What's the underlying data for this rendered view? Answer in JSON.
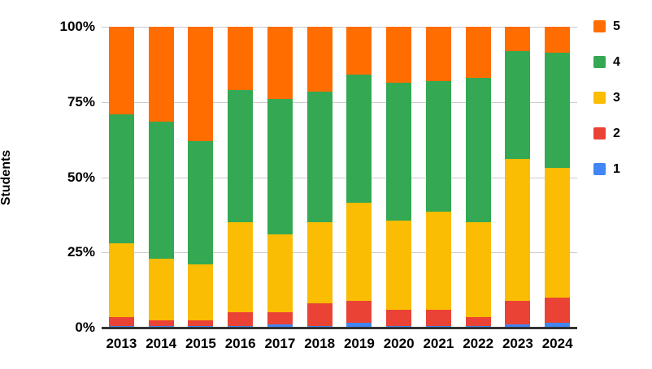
{
  "chart_data": {
    "type": "bar",
    "subtype": "stacked-100-percent",
    "title": "",
    "xlabel": "",
    "ylabel": "Students",
    "ylim": [
      0,
      100
    ],
    "grid": true,
    "legend_position": "right",
    "y_ticks": [
      "100%",
      "75%",
      "50%",
      "25%",
      "0%"
    ],
    "categories": [
      "2013",
      "2014",
      "2015",
      "2016",
      "2017",
      "2018",
      "2019",
      "2020",
      "2021",
      "2022",
      "2023",
      "2024"
    ],
    "series": [
      {
        "name": "5",
        "color": "#FF6D01",
        "values": [
          29,
          31.5,
          38,
          21,
          24,
          21.5,
          16,
          18.5,
          18,
          17,
          8,
          8.5
        ]
      },
      {
        "name": "4",
        "color": "#34A853",
        "values": [
          43,
          45.5,
          41,
          44,
          45,
          43.5,
          42.5,
          46,
          43.5,
          48,
          36,
          38.5
        ]
      },
      {
        "name": "3",
        "color": "#FBBC04",
        "values": [
          24.5,
          20.5,
          18.5,
          30,
          26,
          27,
          32.5,
          29.5,
          32.5,
          31.5,
          47,
          43
        ]
      },
      {
        "name": "2",
        "color": "#EA4335",
        "values": [
          3,
          2,
          2,
          4.5,
          4,
          7.5,
          7.5,
          5.5,
          5.5,
          3,
          8,
          8.5
        ]
      },
      {
        "name": "1",
        "color": "#4285F4",
        "values": [
          0.5,
          0.5,
          0.5,
          0.5,
          1,
          0.5,
          1.5,
          0.5,
          0.5,
          0.5,
          1,
          1.5
        ]
      }
    ],
    "colors": {
      "gridline": "#cccccc",
      "axis_line": "#333333",
      "text": "#000000",
      "background": "#ffffff"
    }
  }
}
